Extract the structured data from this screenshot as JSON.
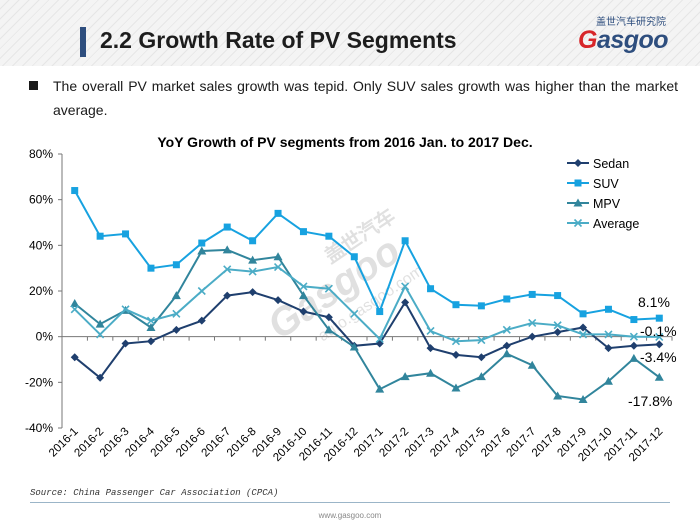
{
  "header": {
    "title": "2.2 Growth Rate of PV Segments",
    "logo_cn": "盖世汽车研究院",
    "logo_text_g": "G",
    "logo_text_rest": "asgoo"
  },
  "bullet": {
    "text": "The overall PV market sales growth was tepid. Only SUV sales growth was higher than the market average."
  },
  "watermark": {
    "cn": "盖世汽车",
    "brand": "Gasgoo",
    "url": "auto.gasgoo.com"
  },
  "chart_data": {
    "type": "line",
    "title": "YoY Growth of PV segments from 2016 Jan. to 2017 Dec.",
    "xlabel": "",
    "ylabel": "",
    "ylim": [
      -40,
      80
    ],
    "y_ticks": [
      "80%",
      "60%",
      "40%",
      "20%",
      "0%",
      "-20%",
      "-40%"
    ],
    "categories": [
      "2016-1",
      "2016-2",
      "2016-3",
      "2016-4",
      "2016-5",
      "2016-6",
      "2016-7",
      "2016-8",
      "2016-9",
      "2016-10",
      "2016-11",
      "2016-12",
      "2017-1",
      "2017-2",
      "2017-3",
      "2017-4",
      "2017-5",
      "2017-6",
      "2017-7",
      "2017-8",
      "2017-9",
      "2017-10",
      "2017-11",
      "2017-12"
    ],
    "legend_position": "top-right",
    "series": [
      {
        "name": "Sedan",
        "color": "#1f3f6e",
        "marker": "diamond",
        "values": [
          -9,
          -18,
          -3,
          -2,
          3,
          7,
          18,
          19.5,
          16,
          11,
          8.5,
          -4,
          -3,
          15,
          -5,
          -8,
          -9,
          -4,
          0,
          2,
          4,
          -5,
          -4,
          -3.4
        ]
      },
      {
        "name": "SUV",
        "color": "#17a2e0",
        "marker": "square",
        "values": [
          64,
          44,
          45,
          30,
          31.5,
          41,
          48,
          42,
          54,
          46,
          44,
          35,
          11,
          42,
          21,
          14,
          13.5,
          16.5,
          18.5,
          18,
          10,
          12,
          7.5,
          8.1
        ]
      },
      {
        "name": "MPV",
        "color": "#31859c",
        "marker": "triangle",
        "values": [
          14.5,
          5.5,
          11.5,
          4,
          18,
          37.5,
          38,
          33.5,
          35,
          18,
          3,
          -4.5,
          -23,
          -17.5,
          -16,
          -22.5,
          -17.5,
          -7.5,
          -12.5,
          -26,
          -27.5,
          -19.5,
          -9.5,
          -17.8
        ]
      },
      {
        "name": "Average",
        "color": "#4bacc6",
        "marker": "x",
        "values": [
          12,
          1,
          12,
          7,
          10,
          20,
          29.5,
          28.5,
          30.5,
          22,
          21,
          10,
          -1,
          22,
          2.5,
          -2,
          -1.5,
          3,
          6,
          5,
          1,
          1,
          0,
          -0.1
        ]
      }
    ],
    "annotations": [
      "8.1%",
      "-0.1%",
      "-3.4%",
      "-17.8%"
    ]
  },
  "source": "Source: China Passenger Car Association (CPCA)",
  "footer_url": "www.gasgoo.com"
}
